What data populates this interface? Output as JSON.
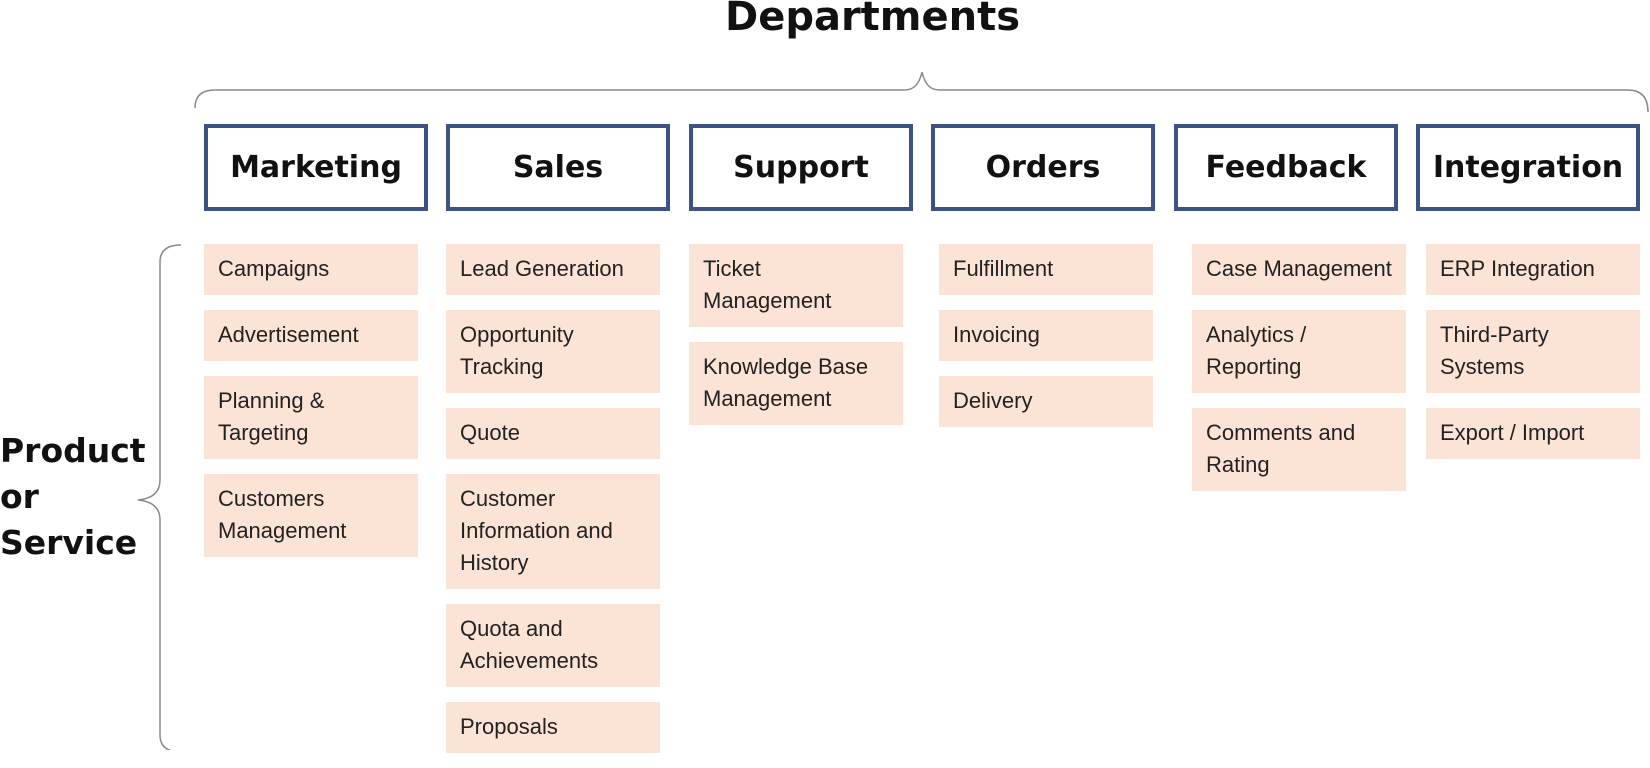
{
  "title": "Departments",
  "side_label": [
    "Product",
    "or",
    "Service"
  ],
  "colors": {
    "dept_border": "#3e5283",
    "item_fill": "#fbe3d6",
    "brace": "#8a8a8a"
  },
  "departments": [
    {
      "name": "Marketing",
      "items": [
        "Campaigns",
        "Advertisement",
        "Planning & Targeting",
        "Customers Management"
      ]
    },
    {
      "name": "Sales",
      "items": [
        "Lead Generation",
        "Opportunity Tracking",
        "Quote",
        "Customer Information and History",
        "Quota and Achievements",
        "Proposals"
      ]
    },
    {
      "name": "Support",
      "items": [
        "Ticket Management",
        "Knowledge Base Management"
      ]
    },
    {
      "name": "Orders",
      "items": [
        "Fulfillment",
        "Invoicing",
        "Delivery"
      ]
    },
    {
      "name": "Feedback",
      "items": [
        "Case Management",
        "Analytics / Reporting",
        "Comments and Rating"
      ]
    },
    {
      "name": "Integration",
      "items": [
        "ERP Integration",
        "Third-Party Systems",
        "Export / Import"
      ]
    }
  ]
}
